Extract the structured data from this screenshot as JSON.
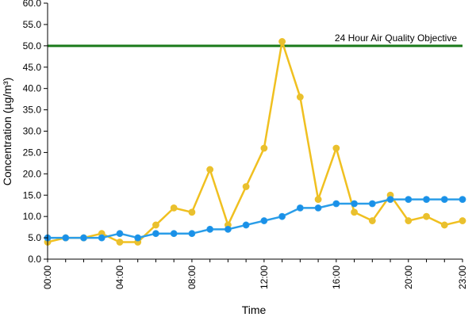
{
  "chart_data": {
    "type": "line",
    "xlabel": "Time",
    "ylabel": "Concentration (µg/m³)",
    "ylim": [
      0,
      60
    ],
    "y_ticks": [
      "0.0",
      "5.0",
      "10.0",
      "15.0",
      "20.0",
      "25.0",
      "30.0",
      "35.0",
      "40.0",
      "45.0",
      "50.0",
      "55.0",
      "60.0"
    ],
    "x_tick_labels": [
      "00:00",
      "04:00",
      "08:00",
      "12:00",
      "16:00",
      "20:00",
      "23:00"
    ],
    "x_tick_hours": [
      0,
      4,
      8,
      12,
      16,
      20,
      23
    ],
    "x": [
      "00:00",
      "01:00",
      "02:00",
      "03:00",
      "04:00",
      "05:00",
      "06:00",
      "07:00",
      "08:00",
      "09:00",
      "10:00",
      "11:00",
      "12:00",
      "13:00",
      "14:00",
      "15:00",
      "16:00",
      "17:00",
      "18:00",
      "19:00",
      "20:00",
      "21:00",
      "22:00",
      "23:00"
    ],
    "series": [
      {
        "color": "#f0c020",
        "marker_color": "#e8c030",
        "values": [
          4,
          5,
          5,
          6,
          4,
          4,
          8,
          12,
          11,
          21,
          8,
          17,
          26,
          51,
          38,
          14,
          26,
          11,
          9,
          15,
          9,
          10,
          8,
          9
        ]
      },
      {
        "color": "#2a9de8",
        "marker_color": "#1a90e8",
        "values": [
          5,
          5,
          5,
          5,
          6,
          5,
          6,
          6,
          6,
          7,
          7,
          8,
          9,
          10,
          12,
          12,
          13,
          13,
          13,
          14,
          14,
          14,
          14,
          14
        ]
      }
    ],
    "objective": {
      "value": 50,
      "label": "24 Hour Air Quality Objective",
      "color": "#1a7a1a"
    },
    "grid": false
  }
}
